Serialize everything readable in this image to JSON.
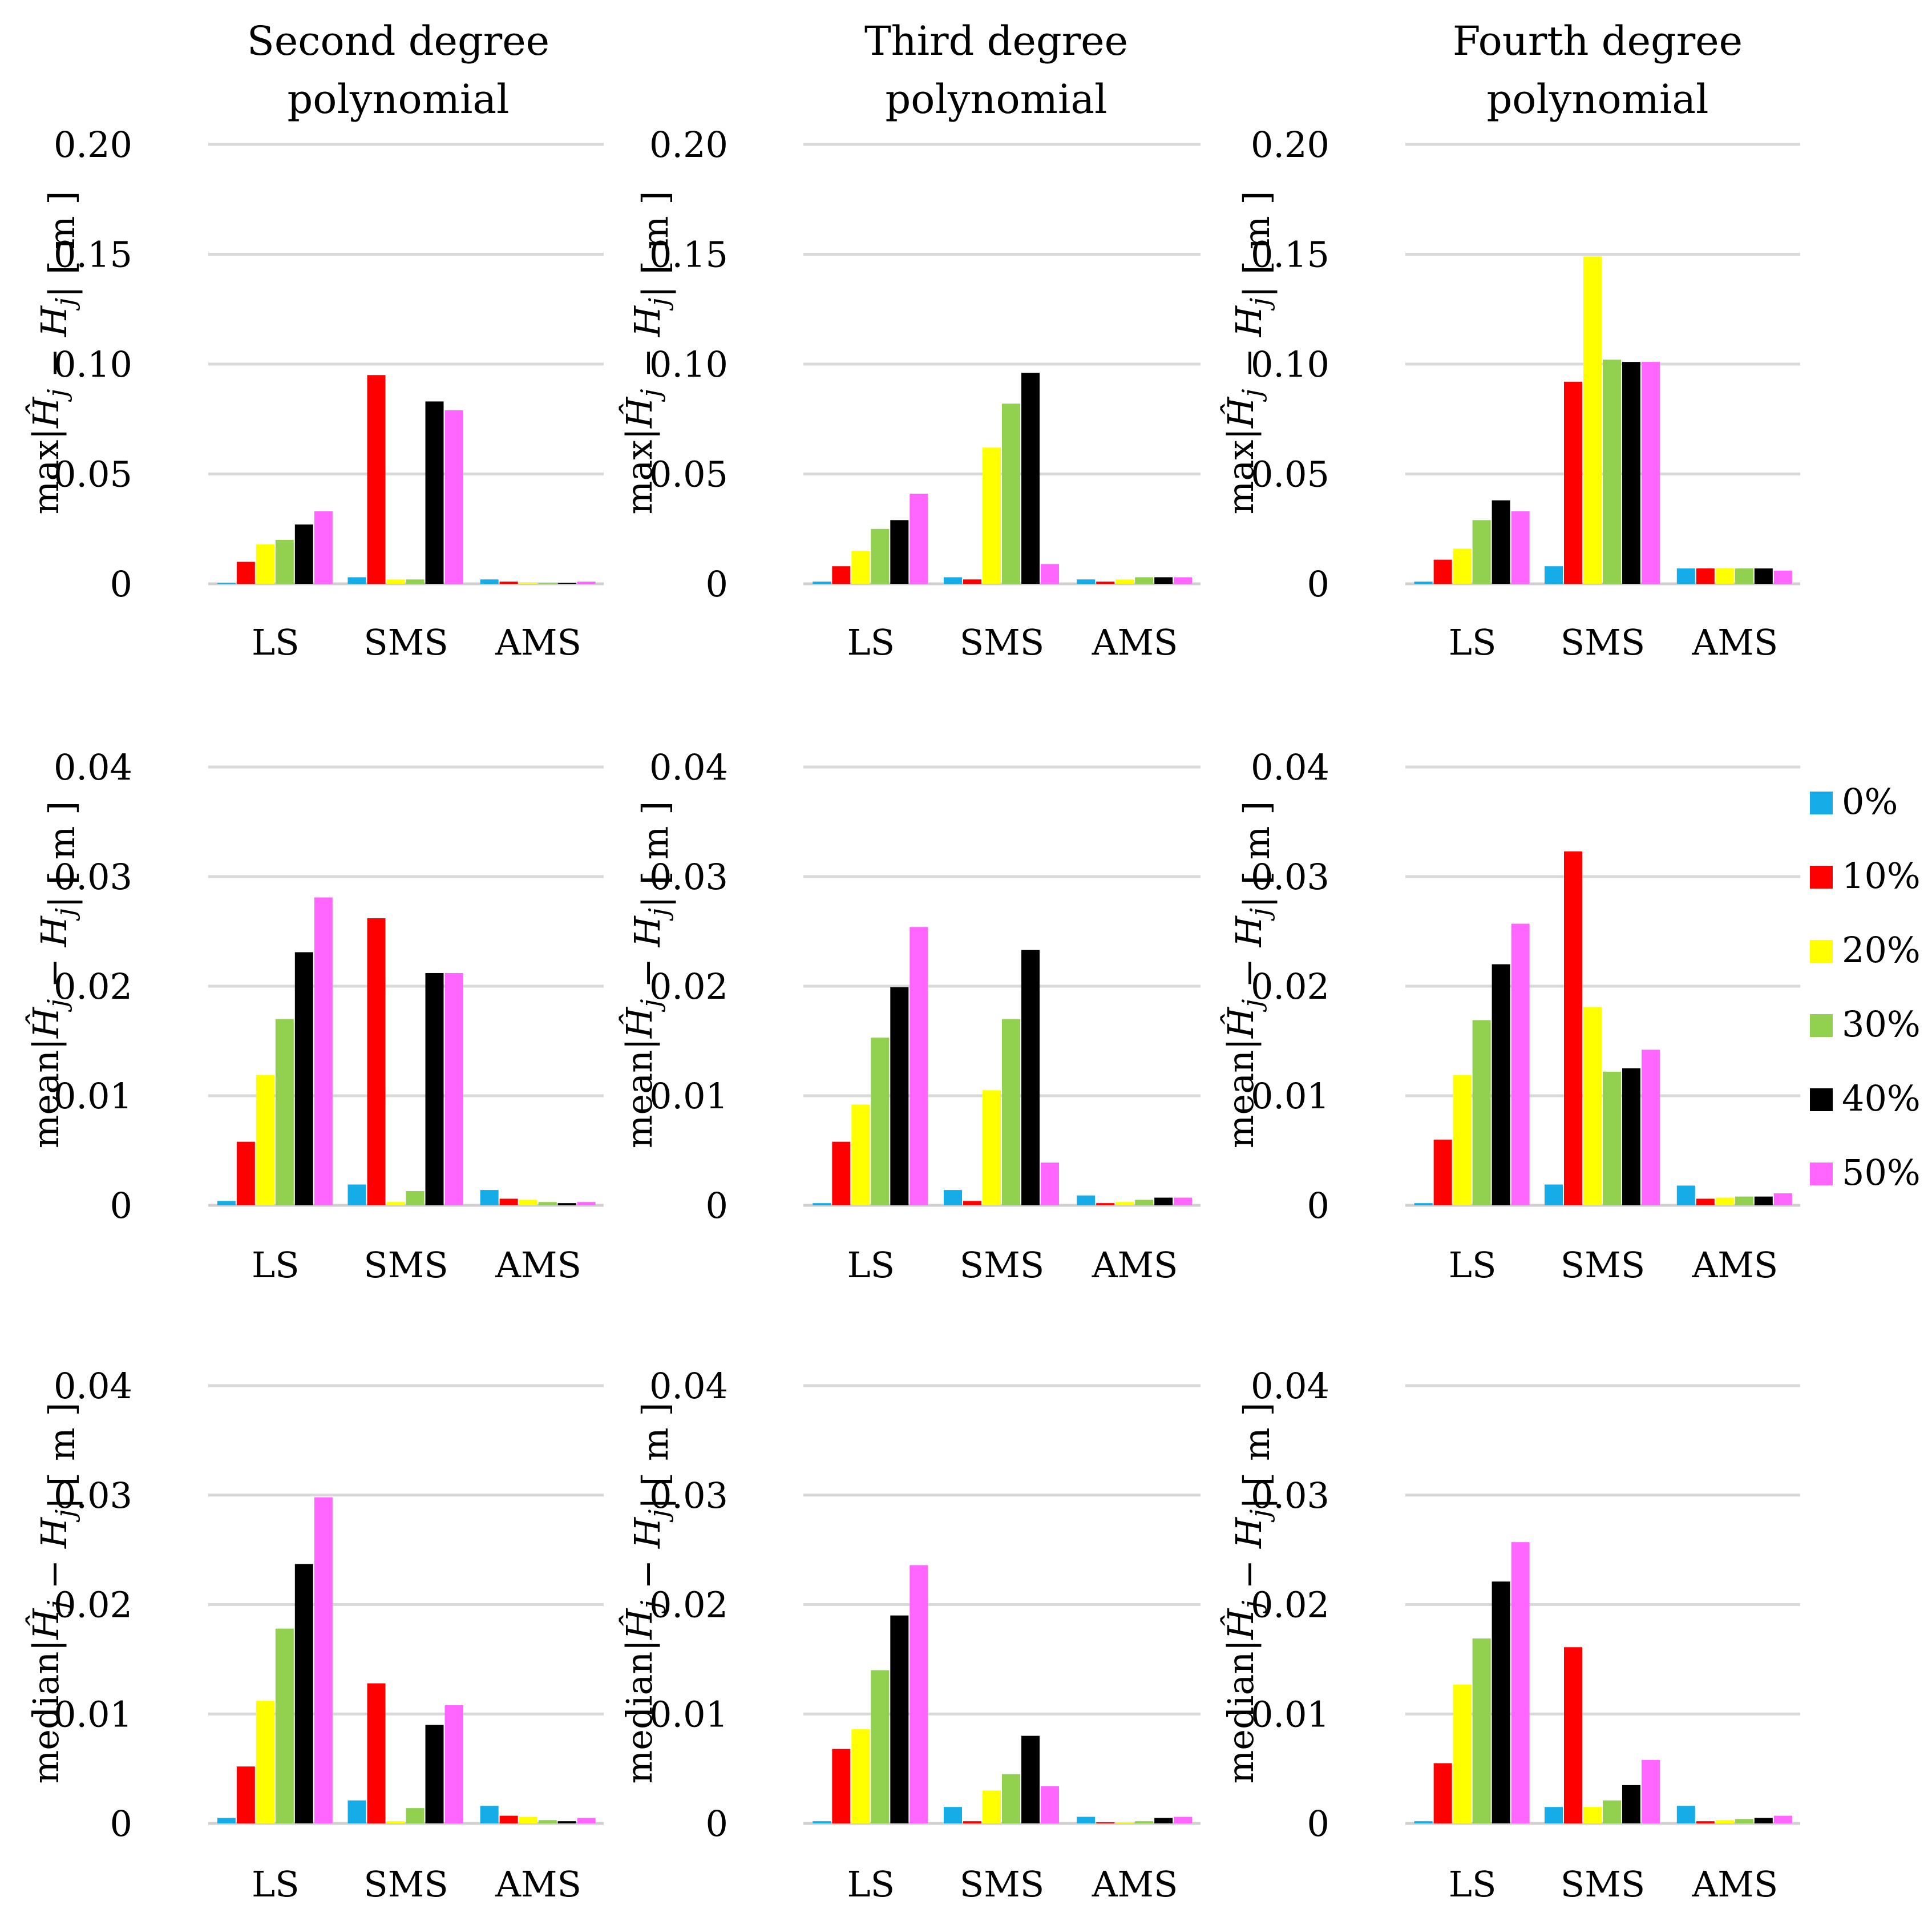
{
  "legend": {
    "title": "",
    "entries": [
      {
        "label": "0%",
        "color": "#16ACE8"
      },
      {
        "label": "10%",
        "color": "#FF0000"
      },
      {
        "label": "20%",
        "color": "#FFFF00"
      },
      {
        "label": "30%",
        "color": "#92D050"
      },
      {
        "label": "40%",
        "color": "#000000"
      },
      {
        "label": "50%",
        "color": "#FF66FF"
      }
    ]
  },
  "column_titles": [
    [
      "Second degree",
      "polynomial"
    ],
    [
      "Third degree",
      "polynomial"
    ],
    [
      "Fourth degree",
      "polynomial"
    ]
  ],
  "row_ylabels": [
    {
      "func": "max",
      "expr_hat": "Ĥ",
      "sub_j": "j",
      "minus": " − ",
      "expr_h": "H",
      "unit": "[ m ]"
    },
    {
      "func": "mean",
      "expr_hat": "Ĥ",
      "sub_j": "j",
      "minus": " − ",
      "expr_h": "H",
      "unit": "[ m ]"
    },
    {
      "func": "median",
      "expr_hat": "Ĥ",
      "sub_j": "j",
      "minus": " − ",
      "expr_h": "H",
      "unit": "[ m ]"
    }
  ],
  "chart_data": [
    {
      "type": "bar",
      "id": "max-2",
      "row": 0,
      "col": 0,
      "categories": [
        "LS",
        "SMS",
        "AMS"
      ],
      "ylim": [
        0,
        0.2
      ],
      "yticks": [
        "0",
        "0.05",
        "0.10",
        "0.15",
        "0.20"
      ],
      "ytick_values": [
        0,
        0.05,
        0.1,
        0.15,
        0.2
      ],
      "series": [
        {
          "name": "0%",
          "values": [
            0.0003,
            0.003,
            0.002
          ]
        },
        {
          "name": "10%",
          "values": [
            0.01,
            0.095,
            0.001
          ]
        },
        {
          "name": "20%",
          "values": [
            0.018,
            0.002,
            0.0005
          ]
        },
        {
          "name": "30%",
          "values": [
            0.02,
            0.002,
            0.0003
          ]
        },
        {
          "name": "40%",
          "values": [
            0.027,
            0.083,
            0.0003
          ]
        },
        {
          "name": "50%",
          "values": [
            0.033,
            0.079,
            0.001
          ]
        }
      ]
    },
    {
      "type": "bar",
      "id": "max-3",
      "row": 0,
      "col": 1,
      "categories": [
        "LS",
        "SMS",
        "AMS"
      ],
      "ylim": [
        0,
        0.2
      ],
      "yticks": [
        "0",
        "0.05",
        "0.10",
        "0.15",
        "0.20"
      ],
      "ytick_values": [
        0,
        0.05,
        0.1,
        0.15,
        0.2
      ],
      "series": [
        {
          "name": "0%",
          "values": [
            0.001,
            0.003,
            0.002
          ]
        },
        {
          "name": "10%",
          "values": [
            0.008,
            0.002,
            0.001
          ]
        },
        {
          "name": "20%",
          "values": [
            0.015,
            0.062,
            0.002
          ]
        },
        {
          "name": "30%",
          "values": [
            0.025,
            0.082,
            0.003
          ]
        },
        {
          "name": "40%",
          "values": [
            0.029,
            0.096,
            0.003
          ]
        },
        {
          "name": "50%",
          "values": [
            0.041,
            0.009,
            0.003
          ]
        }
      ]
    },
    {
      "type": "bar",
      "id": "max-4",
      "row": 0,
      "col": 2,
      "categories": [
        "LS",
        "SMS",
        "AMS"
      ],
      "ylim": [
        0,
        0.2
      ],
      "yticks": [
        "0",
        "0.05",
        "0.10",
        "0.15",
        "0.20"
      ],
      "ytick_values": [
        0,
        0.05,
        0.1,
        0.15,
        0.2
      ],
      "series": [
        {
          "name": "0%",
          "values": [
            0.001,
            0.008,
            0.007
          ]
        },
        {
          "name": "10%",
          "values": [
            0.011,
            0.092,
            0.007
          ]
        },
        {
          "name": "20%",
          "values": [
            0.016,
            0.149,
            0.007
          ]
        },
        {
          "name": "30%",
          "values": [
            0.029,
            0.102,
            0.007
          ]
        },
        {
          "name": "40%",
          "values": [
            0.038,
            0.101,
            0.007
          ]
        },
        {
          "name": "50%",
          "values": [
            0.033,
            0.101,
            0.006
          ]
        }
      ]
    },
    {
      "type": "bar",
      "id": "mean-2",
      "row": 1,
      "col": 0,
      "categories": [
        "LS",
        "SMS",
        "AMS"
      ],
      "ylim": [
        0,
        0.04
      ],
      "yticks": [
        "0",
        "0.01",
        "0.02",
        "0.03",
        "0.04"
      ],
      "ytick_values": [
        0,
        0.01,
        0.02,
        0.03,
        0.04
      ],
      "series": [
        {
          "name": "0%",
          "values": [
            0.0004,
            0.0019,
            0.0014
          ]
        },
        {
          "name": "10%",
          "values": [
            0.0058,
            0.0262,
            0.0006
          ]
        },
        {
          "name": "20%",
          "values": [
            0.0119,
            0.0003,
            0.0005
          ]
        },
        {
          "name": "30%",
          "values": [
            0.017,
            0.0013,
            0.0003
          ]
        },
        {
          "name": "40%",
          "values": [
            0.0231,
            0.0212,
            0.0002
          ]
        },
        {
          "name": "50%",
          "values": [
            0.0281,
            0.0212,
            0.0003
          ]
        }
      ]
    },
    {
      "type": "bar",
      "id": "mean-3",
      "row": 1,
      "col": 1,
      "categories": [
        "LS",
        "SMS",
        "AMS"
      ],
      "ylim": [
        0,
        0.04
      ],
      "yticks": [
        "0",
        "0.01",
        "0.02",
        "0.03",
        "0.04"
      ],
      "ytick_values": [
        0,
        0.01,
        0.02,
        0.03,
        0.04
      ],
      "series": [
        {
          "name": "0%",
          "values": [
            0.0002,
            0.0014,
            0.0009
          ]
        },
        {
          "name": "10%",
          "values": [
            0.0058,
            0.0004,
            0.0002
          ]
        },
        {
          "name": "20%",
          "values": [
            0.0092,
            0.0105,
            0.0003
          ]
        },
        {
          "name": "30%",
          "values": [
            0.0153,
            0.017,
            0.0005
          ]
        },
        {
          "name": "40%",
          "values": [
            0.0199,
            0.0233,
            0.0007
          ]
        },
        {
          "name": "50%",
          "values": [
            0.0254,
            0.0039,
            0.0007
          ]
        }
      ]
    },
    {
      "type": "bar",
      "id": "mean-4",
      "row": 1,
      "col": 2,
      "categories": [
        "LS",
        "SMS",
        "AMS"
      ],
      "ylim": [
        0,
        0.04
      ],
      "yticks": [
        "0",
        "0.01",
        "0.02",
        "0.03",
        "0.04"
      ],
      "ytick_values": [
        0,
        0.01,
        0.02,
        0.03,
        0.04
      ],
      "series": [
        {
          "name": "0%",
          "values": [
            0.0002,
            0.0019,
            0.0018
          ]
        },
        {
          "name": "10%",
          "values": [
            0.006,
            0.0323,
            0.0006
          ]
        },
        {
          "name": "20%",
          "values": [
            0.0119,
            0.0181,
            0.0007
          ]
        },
        {
          "name": "30%",
          "values": [
            0.0169,
            0.0122,
            0.0008
          ]
        },
        {
          "name": "40%",
          "values": [
            0.022,
            0.0125,
            0.0008
          ]
        },
        {
          "name": "50%",
          "values": [
            0.0257,
            0.0142,
            0.0011
          ]
        }
      ]
    },
    {
      "type": "bar",
      "id": "median-2",
      "row": 2,
      "col": 0,
      "categories": [
        "LS",
        "SMS",
        "AMS"
      ],
      "ylim": [
        0,
        0.04
      ],
      "yticks": [
        "0",
        "0.01",
        "0.02",
        "0.03",
        "0.04"
      ],
      "ytick_values": [
        0,
        0.01,
        0.02,
        0.03,
        0.04
      ],
      "series": [
        {
          "name": "0%",
          "values": [
            0.0005,
            0.0021,
            0.0016
          ]
        },
        {
          "name": "10%",
          "values": [
            0.0052,
            0.0128,
            0.0007
          ]
        },
        {
          "name": "20%",
          "values": [
            0.0112,
            0.0002,
            0.0006
          ]
        },
        {
          "name": "30%",
          "values": [
            0.0178,
            0.0014,
            0.0003
          ]
        },
        {
          "name": "40%",
          "values": [
            0.0237,
            0.009,
            0.0002
          ]
        },
        {
          "name": "50%",
          "values": [
            0.0298,
            0.0108,
            0.0005
          ]
        }
      ]
    },
    {
      "type": "bar",
      "id": "median-3",
      "row": 2,
      "col": 1,
      "categories": [
        "LS",
        "SMS",
        "AMS"
      ],
      "ylim": [
        0,
        0.04
      ],
      "yticks": [
        "0",
        "0.01",
        "0.02",
        "0.03",
        "0.04"
      ],
      "ytick_values": [
        0,
        0.01,
        0.02,
        0.03,
        0.04
      ],
      "series": [
        {
          "name": "0%",
          "values": [
            0.0002,
            0.0015,
            0.0006
          ]
        },
        {
          "name": "10%",
          "values": [
            0.0068,
            0.0002,
            0.0001
          ]
        },
        {
          "name": "20%",
          "values": [
            0.0086,
            0.003,
            0.0001
          ]
        },
        {
          "name": "30%",
          "values": [
            0.014,
            0.0045,
            0.0002
          ]
        },
        {
          "name": "40%",
          "values": [
            0.019,
            0.008,
            0.0005
          ]
        },
        {
          "name": "50%",
          "values": [
            0.0236,
            0.0034,
            0.0006
          ]
        }
      ]
    },
    {
      "type": "bar",
      "id": "median-4",
      "row": 2,
      "col": 2,
      "categories": [
        "LS",
        "SMS",
        "AMS"
      ],
      "ylim": [
        0,
        0.04
      ],
      "yticks": [
        "0",
        "0.01",
        "0.02",
        "0.03",
        "0.04"
      ],
      "ytick_values": [
        0,
        0.01,
        0.02,
        0.03,
        0.04
      ],
      "series": [
        {
          "name": "0%",
          "values": [
            0.0002,
            0.0015,
            0.0016
          ]
        },
        {
          "name": "10%",
          "values": [
            0.0055,
            0.0161,
            0.0002
          ]
        },
        {
          "name": "20%",
          "values": [
            0.0127,
            0.0015,
            0.0003
          ]
        },
        {
          "name": "30%",
          "values": [
            0.0169,
            0.0021,
            0.0004
          ]
        },
        {
          "name": "40%",
          "values": [
            0.0221,
            0.0035,
            0.0005
          ]
        },
        {
          "name": "50%",
          "values": [
            0.0257,
            0.0058,
            0.0007
          ]
        }
      ]
    }
  ]
}
